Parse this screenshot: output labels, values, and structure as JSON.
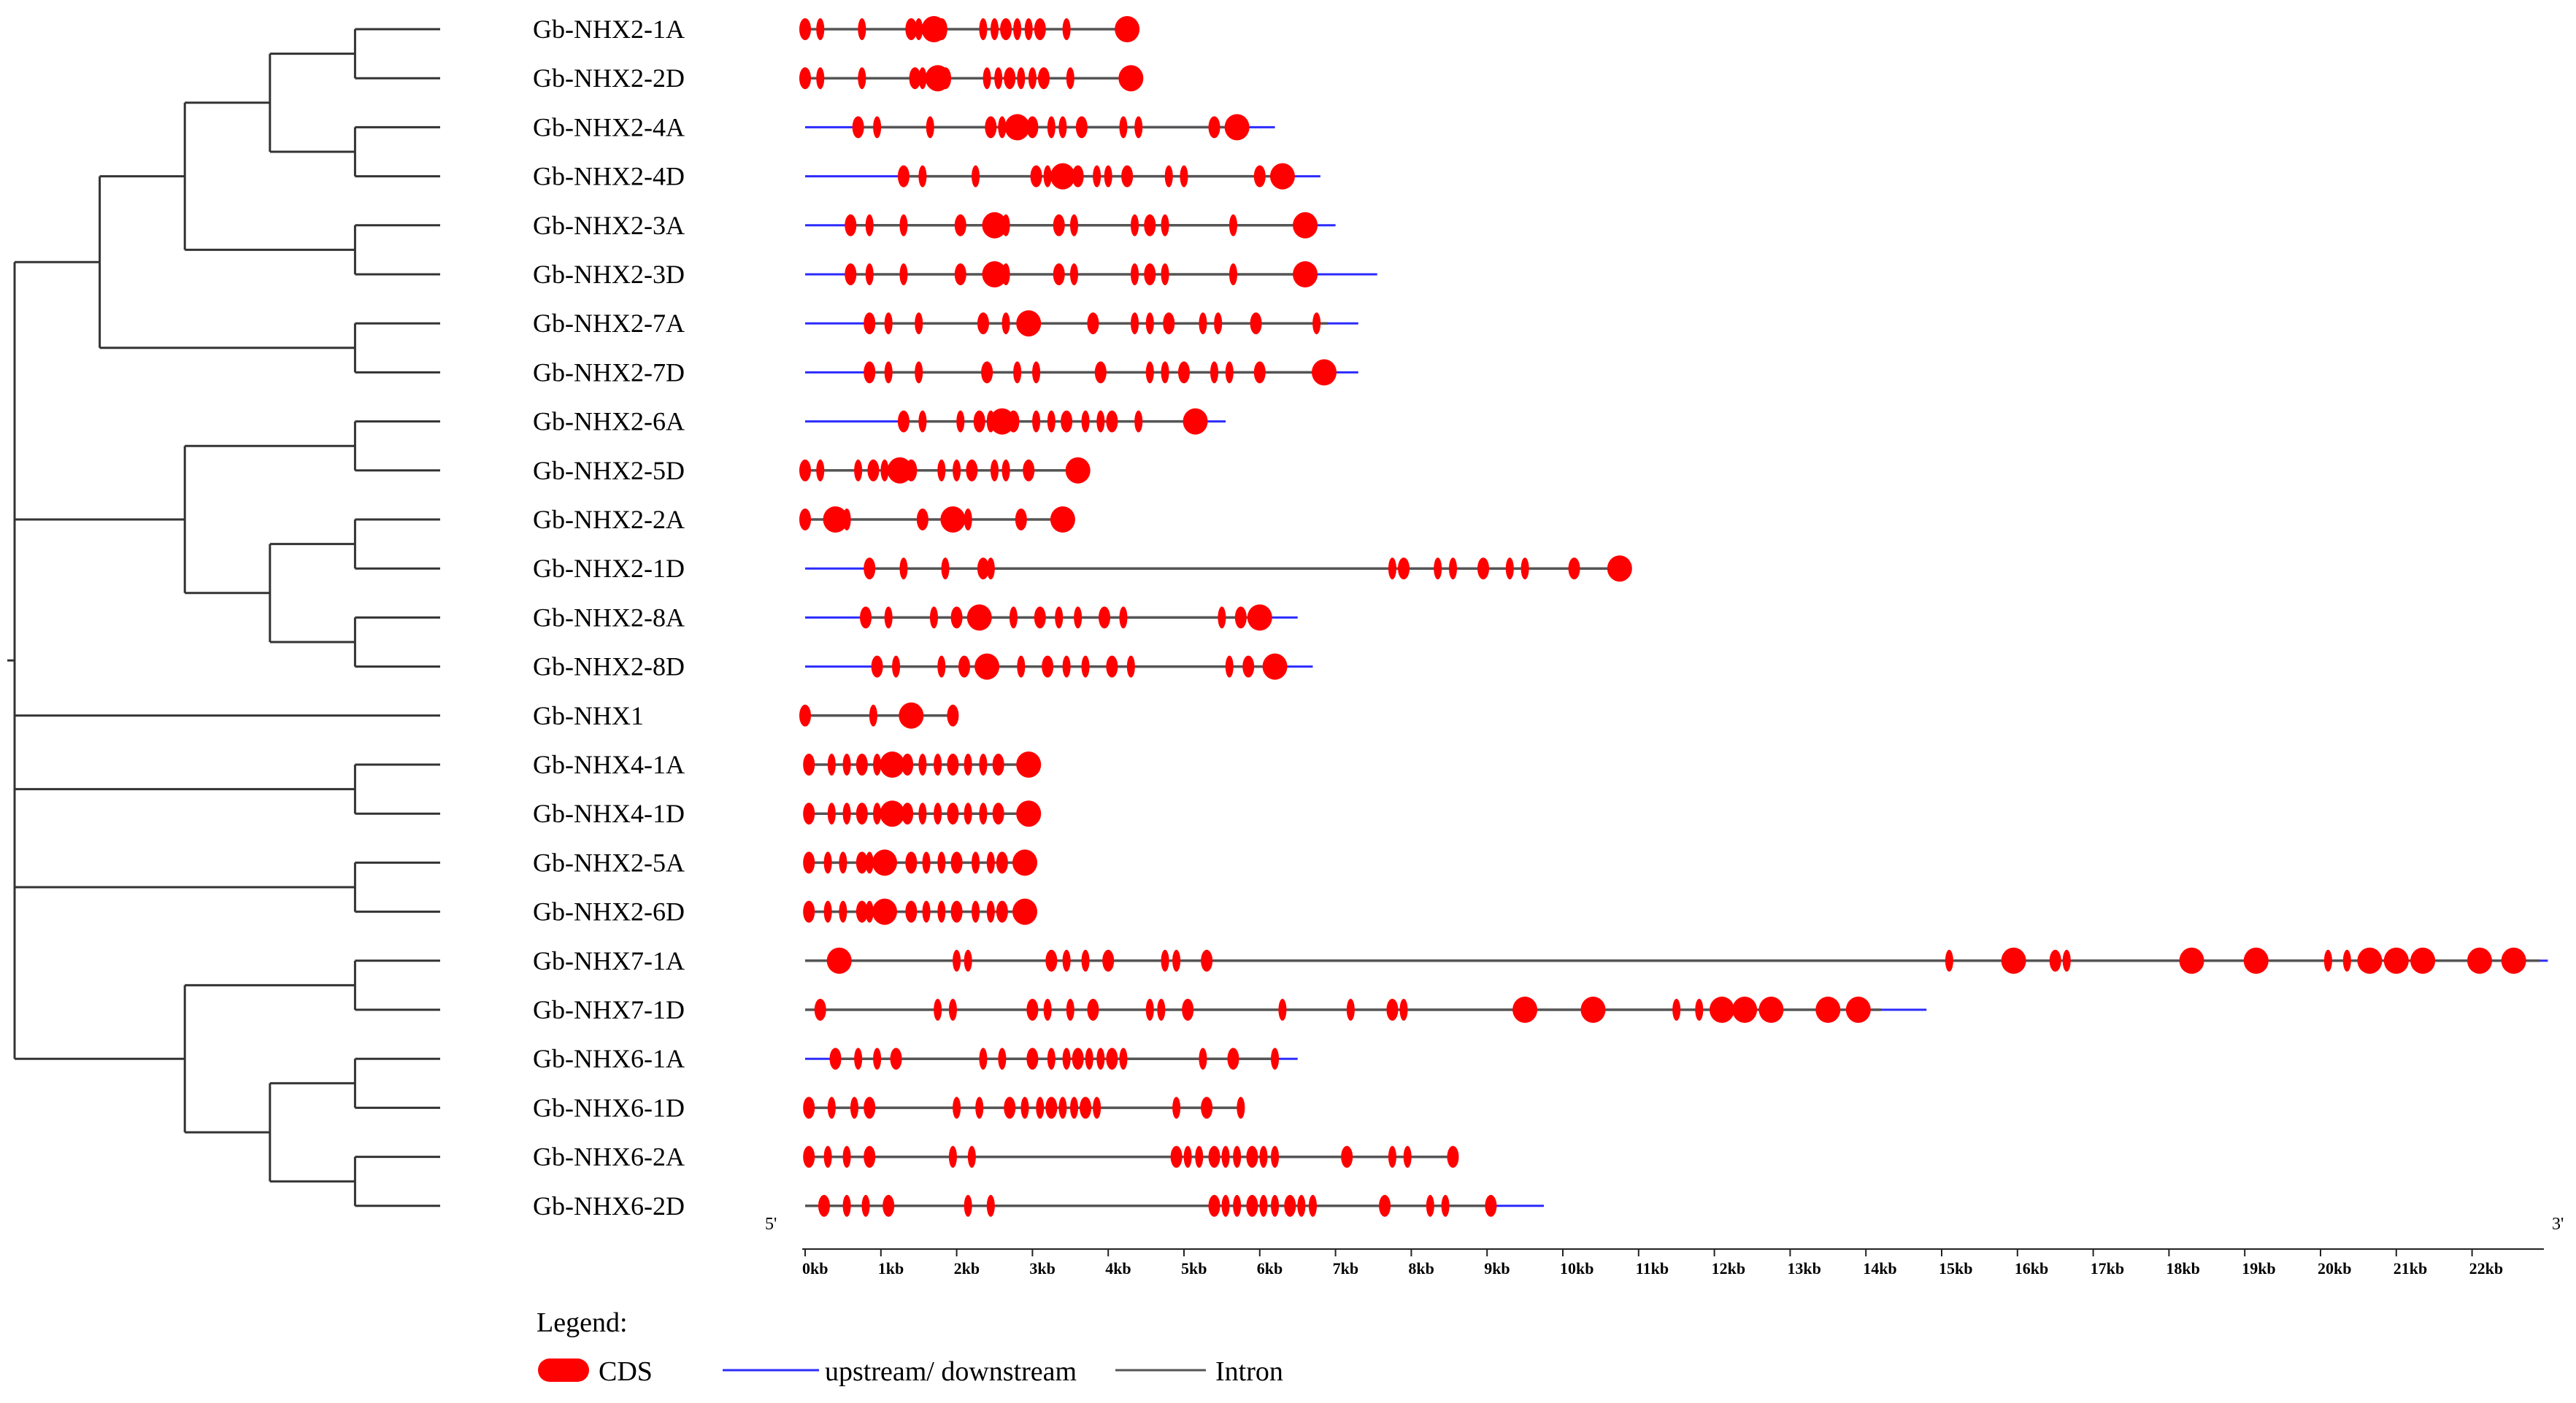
{
  "genes": [
    {
      "name": "Gb-NHX2-1A",
      "up": 0.0,
      "down": 4.4,
      "intron": [
        0.0,
        4.4
      ],
      "exons": [
        0.0,
        0.2,
        0.75,
        1.4,
        1.5,
        1.7,
        1.8,
        2.35,
        2.5,
        2.65,
        2.8,
        2.95,
        3.1,
        3.45,
        4.25
      ],
      "cds_big": [
        1.7,
        4.25
      ]
    },
    {
      "name": "Gb-NHX2-2D",
      "up": 0.0,
      "down": 4.45,
      "intron": [
        0.0,
        4.45
      ],
      "exons": [
        0.0,
        0.2,
        0.75,
        1.45,
        1.55,
        1.75,
        1.85,
        2.4,
        2.55,
        2.7,
        2.85,
        3.0,
        3.15,
        3.5,
        4.3
      ],
      "cds_big": [
        1.75,
        4.3
      ]
    },
    {
      "name": "Gb-NHX2-4A",
      "up": 0.0,
      "down": 6.2,
      "intron": [
        0.7,
        5.85
      ],
      "exons": [
        0.7,
        0.95,
        1.65,
        2.45,
        2.6,
        2.8,
        3.0,
        3.25,
        3.4,
        3.65,
        4.2,
        4.4,
        5.4,
        5.7
      ],
      "cds_big": [
        2.8,
        5.7
      ]
    },
    {
      "name": "Gb-NHX2-4D",
      "up": 0.0,
      "down": 6.8,
      "intron": [
        1.3,
        6.45
      ],
      "exons": [
        1.3,
        1.55,
        2.25,
        3.05,
        3.2,
        3.4,
        3.6,
        3.85,
        4.0,
        4.25,
        4.8,
        5.0,
        6.0,
        6.3
      ],
      "cds_big": [
        3.4,
        6.3
      ]
    },
    {
      "name": "Gb-NHX2-3A",
      "up": 0.0,
      "down": 7.0,
      "intron": [
        0.6,
        6.7
      ],
      "exons": [
        0.6,
        0.85,
        1.3,
        2.05,
        2.5,
        2.65,
        3.35,
        3.55,
        4.35,
        4.55,
        4.75,
        5.65,
        6.6
      ],
      "cds_big": [
        2.5,
        6.6
      ]
    },
    {
      "name": "Gb-NHX2-3D",
      "up": 0.0,
      "down": 7.55,
      "intron": [
        0.6,
        6.7
      ],
      "exons": [
        0.6,
        0.85,
        1.3,
        2.05,
        2.5,
        2.65,
        3.35,
        3.55,
        4.35,
        4.55,
        4.75,
        5.65,
        6.6
      ],
      "cds_big": [
        2.5,
        6.6
      ]
    },
    {
      "name": "Gb-NHX2-7A",
      "up": 0.0,
      "down": 7.3,
      "intron": [
        0.85,
        6.9
      ],
      "exons": [
        0.85,
        1.1,
        1.5,
        2.35,
        2.65,
        2.95,
        3.8,
        4.35,
        4.55,
        4.8,
        5.25,
        5.45,
        5.95,
        6.75
      ],
      "cds_big": [
        2.95
      ]
    },
    {
      "name": "Gb-NHX2-7D",
      "up": 0.0,
      "down": 7.3,
      "intron": [
        0.85,
        6.9
      ],
      "exons": [
        0.85,
        1.1,
        1.5,
        2.4,
        2.8,
        3.05,
        3.9,
        4.55,
        4.75,
        5.0,
        5.4,
        5.6,
        6.0,
        6.85
      ],
      "cds_big": [
        6.85
      ]
    },
    {
      "name": "Gb-NHX2-6A",
      "up": 0.0,
      "down": 5.55,
      "intron": [
        1.3,
        5.3
      ],
      "exons": [
        1.3,
        1.55,
        2.05,
        2.3,
        2.45,
        2.6,
        2.75,
        3.05,
        3.25,
        3.45,
        3.7,
        3.9,
        4.05,
        4.4,
        5.15
      ],
      "cds_big": [
        2.6,
        5.15
      ]
    },
    {
      "name": "Gb-NHX2-5D",
      "up": 0.0,
      "down": 3.6,
      "intron": [
        0.0,
        3.6
      ],
      "exons": [
        0.0,
        0.2,
        0.7,
        0.9,
        1.05,
        1.25,
        1.4,
        1.8,
        2.0,
        2.2,
        2.5,
        2.65,
        2.95,
        3.6
      ],
      "cds_big": [
        1.25,
        3.6
      ]
    },
    {
      "name": "Gb-NHX2-2A",
      "up": 0.0,
      "down": 3.45,
      "intron": [
        0.0,
        3.45
      ],
      "exons": [
        0.0,
        0.4,
        0.55,
        1.55,
        1.95,
        2.15,
        2.85,
        3.4
      ],
      "cds_big": [
        0.4,
        1.95,
        3.4
      ]
    },
    {
      "name": "Gb-NHX2-1D",
      "up": 0.0,
      "down": 10.85,
      "intron": [
        0.85,
        10.8
      ],
      "exons": [
        0.85,
        1.3,
        1.85,
        2.35,
        2.45,
        7.75,
        7.9,
        8.35,
        8.55,
        8.95,
        9.3,
        9.5,
        10.15,
        10.75
      ],
      "cds_big": [
        10.75
      ]
    },
    {
      "name": "Gb-NHX2-8A",
      "up": 0.0,
      "down": 6.5,
      "intron": [
        0.8,
        6.05
      ],
      "exons": [
        0.8,
        1.1,
        1.7,
        2.0,
        2.3,
        2.75,
        3.1,
        3.35,
        3.6,
        3.95,
        4.2,
        5.5,
        5.75,
        6.0
      ],
      "cds_big": [
        2.3,
        6.0
      ]
    },
    {
      "name": "Gb-NHX2-8D",
      "up": 0.0,
      "down": 6.7,
      "intron": [
        0.95,
        6.25
      ],
      "exons": [
        0.95,
        1.2,
        1.8,
        2.1,
        2.4,
        2.85,
        3.2,
        3.45,
        3.7,
        4.05,
        4.3,
        5.6,
        5.85,
        6.2
      ],
      "cds_big": [
        2.4,
        6.2
      ]
    },
    {
      "name": "Gb-NHX1",
      "up": 0.0,
      "down": 2.0,
      "intron": [
        0.0,
        2.0
      ],
      "exons": [
        0.0,
        0.9,
        1.4,
        1.95
      ],
      "cds_big": [
        1.4
      ]
    },
    {
      "name": "Gb-NHX4-1A",
      "up": 0.0,
      "down": 2.95,
      "intron": [
        0.0,
        2.95
      ],
      "exons": [
        0.05,
        0.35,
        0.55,
        0.75,
        0.95,
        1.15,
        1.35,
        1.55,
        1.75,
        1.95,
        2.15,
        2.35,
        2.55,
        2.95
      ],
      "cds_big": [
        1.15,
        2.95
      ]
    },
    {
      "name": "Gb-NHX4-1D",
      "up": 0.0,
      "down": 2.95,
      "intron": [
        0.0,
        2.95
      ],
      "exons": [
        0.05,
        0.35,
        0.55,
        0.75,
        0.95,
        1.15,
        1.35,
        1.55,
        1.75,
        1.95,
        2.15,
        2.35,
        2.55,
        2.95
      ],
      "cds_big": [
        1.15,
        2.95
      ]
    },
    {
      "name": "Gb-NHX2-5A",
      "up": 0.0,
      "down": 2.9,
      "intron": [
        0.0,
        2.9
      ],
      "exons": [
        0.05,
        0.3,
        0.5,
        0.75,
        0.85,
        1.05,
        1.4,
        1.6,
        1.8,
        2.0,
        2.25,
        2.45,
        2.6,
        2.9
      ],
      "cds_big": [
        1.05,
        2.9
      ]
    },
    {
      "name": "Gb-NHX2-6D",
      "up": 0.0,
      "down": 2.9,
      "intron": [
        0.0,
        2.9
      ],
      "exons": [
        0.05,
        0.3,
        0.5,
        0.75,
        0.85,
        1.05,
        1.4,
        1.6,
        1.8,
        2.0,
        2.25,
        2.45,
        2.6,
        2.9
      ],
      "cds_big": [
        1.05,
        2.9
      ]
    },
    {
      "name": "Gb-NHX7-1A",
      "up": 0.0,
      "down": 23.0,
      "intron": [
        0.0,
        22.9
      ],
      "exons": [
        0.45,
        2.0,
        2.15,
        3.25,
        3.45,
        3.7,
        4.0,
        4.75,
        4.9,
        5.3,
        15.1,
        15.95,
        16.5,
        16.65,
        18.3,
        19.15,
        20.1,
        20.35,
        20.65,
        21.0,
        21.35,
        22.1,
        22.55
      ],
      "cds_big": [
        0.45,
        15.95,
        18.3,
        19.15,
        20.65,
        21.0,
        21.35,
        22.1,
        22.55
      ]
    },
    {
      "name": "Gb-NHX7-1D",
      "up": 0.0,
      "down": 14.8,
      "intron": [
        0.0,
        14.2
      ],
      "exons": [
        0.2,
        1.75,
        1.95,
        3.0,
        3.2,
        3.5,
        3.8,
        4.55,
        4.7,
        5.05,
        6.3,
        7.2,
        7.75,
        7.9,
        9.5,
        10.4,
        11.5,
        11.8,
        12.1,
        12.4,
        12.75,
        13.5,
        13.9
      ],
      "cds_big": [
        9.5,
        10.4,
        12.1,
        12.4,
        12.75,
        13.5,
        13.9
      ]
    },
    {
      "name": "Gb-NHX6-1A",
      "up": 0.0,
      "down": 6.5,
      "intron": [
        0.4,
        6.2
      ],
      "exons": [
        0.4,
        0.7,
        0.95,
        1.2,
        2.35,
        2.6,
        3.0,
        3.25,
        3.45,
        3.6,
        3.75,
        3.9,
        4.05,
        4.2,
        5.25,
        5.65,
        6.2
      ],
      "cds_big": []
    },
    {
      "name": "Gb-NHX6-1D",
      "up": 0.0,
      "down": 5.8,
      "intron": [
        0.0,
        5.8
      ],
      "exons": [
        0.05,
        0.35,
        0.65,
        0.85,
        2.0,
        2.3,
        2.7,
        2.9,
        3.1,
        3.25,
        3.4,
        3.55,
        3.7,
        3.85,
        4.9,
        5.3,
        5.75
      ],
      "cds_big": []
    },
    {
      "name": "Gb-NHX6-2A",
      "up": 0.0,
      "down": 8.6,
      "intron": [
        0.0,
        8.6
      ],
      "exons": [
        0.05,
        0.3,
        0.55,
        0.85,
        1.95,
        2.2,
        4.9,
        5.05,
        5.2,
        5.4,
        5.55,
        5.7,
        5.9,
        6.05,
        6.2,
        7.15,
        7.75,
        7.95,
        8.55
      ],
      "cds_big": []
    },
    {
      "name": "Gb-NHX6-2D",
      "up": 0.0,
      "down": 9.75,
      "intron": [
        0.0,
        9.1
      ],
      "exons": [
        0.25,
        0.55,
        0.8,
        1.1,
        2.15,
        2.45,
        5.4,
        5.55,
        5.7,
        5.9,
        6.05,
        6.2,
        6.4,
        6.55,
        6.7,
        7.65,
        8.25,
        8.45,
        9.05
      ],
      "cds_big": []
    }
  ],
  "axis": {
    "min": 0,
    "max": 23,
    "ticks": [
      "0kb",
      "1kb",
      "2kb",
      "3kb",
      "4kb",
      "5kb",
      "6kb",
      "7kb",
      "8kb",
      "9kb",
      "10kb",
      "11kb",
      "12kb",
      "13kb",
      "14kb",
      "15kb",
      "16kb",
      "17kb",
      "18kb",
      "19kb",
      "20kb",
      "21kb",
      "22kb"
    ],
    "left_end": "5'",
    "right_end": "3'"
  },
  "legend": {
    "title": "Legend:",
    "cds": "CDS",
    "updown": "upstream/ downstream",
    "intron": "Intron"
  },
  "tree": {
    "topology": [
      [
        [
          [
            [
              "Gb-NHX2-1A",
              "Gb-NHX2-2D"
            ],
            [
              "Gb-NHX2-4A",
              "Gb-NHX2-4D"
            ]
          ],
          [
            "Gb-NHX2-3A",
            "Gb-NHX2-3D"
          ]
        ],
        [
          "Gb-NHX2-7A",
          "Gb-NHX2-7D"
        ]
      ],
      [
        [
          "Gb-NHX2-6A",
          "Gb-NHX2-5D"
        ],
        [
          [
            "Gb-NHX2-2A",
            "Gb-NHX2-1D"
          ],
          [
            "Gb-NHX2-8A",
            "Gb-NHX2-8D"
          ]
        ]
      ],
      "Gb-NHX1",
      [
        "Gb-NHX4-1A",
        "Gb-NHX4-1D"
      ],
      [
        "Gb-NHX2-5A",
        "Gb-NHX2-6D"
      ],
      [
        [
          "Gb-NHX7-1A",
          "Gb-NHX7-1D"
        ],
        [
          [
            "Gb-NHX6-1A",
            "Gb-NHX6-1D"
          ],
          [
            "Gb-NHX6-2A",
            "Gb-NHX6-2D"
          ]
        ]
      ]
    ]
  },
  "colors": {
    "cds": "#ff0000",
    "updown": "#2b2bff",
    "intron": "#555555",
    "tree": "#333333"
  }
}
